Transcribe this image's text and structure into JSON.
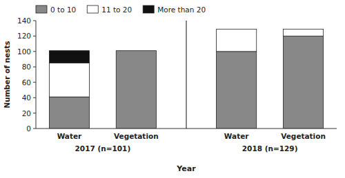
{
  "chart_data": {
    "type": "bar",
    "stacked": true,
    "categories": [
      "Water",
      "Vegetation",
      "Water",
      "Vegetation"
    ],
    "annotations": [
      "2017 (n=101)",
      "2018 (n=129)"
    ],
    "series": [
      {
        "name": "0 to 10",
        "color": "#888888",
        "values": [
          41,
          101,
          100,
          120
        ]
      },
      {
        "name": "11 to 20",
        "color": "#ffffff",
        "values": [
          44,
          0,
          29,
          9
        ]
      },
      {
        "name": "More than 20",
        "color": "#111111",
        "values": [
          16,
          0,
          0,
          0
        ]
      }
    ],
    "x_label": "Year",
    "y_label": "Number of nests",
    "ylim": [
      0,
      140
    ],
    "yticks": [
      0,
      20,
      40,
      60,
      80,
      100,
      120,
      140
    ],
    "grid": false,
    "legend": "top"
  }
}
